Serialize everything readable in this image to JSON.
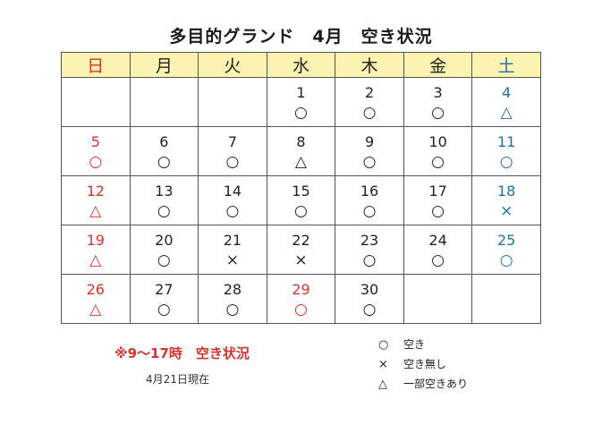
{
  "title": "多目的グランド　4月　空き状況",
  "colors": {
    "sunday": "#d9312b",
    "saturday": "#1f6fa8",
    "header_bg": "#fdf3b0",
    "weekday": "#222222",
    "footnote": "#d9312b"
  },
  "weekdays": [
    "日",
    "月",
    "火",
    "水",
    "木",
    "金",
    "土"
  ],
  "weeks": [
    [
      {
        "day": "",
        "mark": ""
      },
      {
        "day": "",
        "mark": ""
      },
      {
        "day": "",
        "mark": ""
      },
      {
        "day": "1",
        "mark": "○"
      },
      {
        "day": "2",
        "mark": "○"
      },
      {
        "day": "3",
        "mark": "○"
      },
      {
        "day": "4",
        "mark": "△"
      }
    ],
    [
      {
        "day": "5",
        "mark": "○"
      },
      {
        "day": "6",
        "mark": "○"
      },
      {
        "day": "7",
        "mark": "○"
      },
      {
        "day": "8",
        "mark": "△"
      },
      {
        "day": "9",
        "mark": "○"
      },
      {
        "day": "10",
        "mark": "○"
      },
      {
        "day": "11",
        "mark": "○"
      }
    ],
    [
      {
        "day": "12",
        "mark": "△"
      },
      {
        "day": "13",
        "mark": "○"
      },
      {
        "day": "14",
        "mark": "○"
      },
      {
        "day": "15",
        "mark": "○"
      },
      {
        "day": "16",
        "mark": "○"
      },
      {
        "day": "17",
        "mark": "○"
      },
      {
        "day": "18",
        "mark": "×"
      }
    ],
    [
      {
        "day": "19",
        "mark": "△"
      },
      {
        "day": "20",
        "mark": "○"
      },
      {
        "day": "21",
        "mark": "×"
      },
      {
        "day": "22",
        "mark": "×"
      },
      {
        "day": "23",
        "mark": "○"
      },
      {
        "day": "24",
        "mark": "○"
      },
      {
        "day": "25",
        "mark": "○"
      }
    ],
    [
      {
        "day": "26",
        "mark": "△"
      },
      {
        "day": "27",
        "mark": "○"
      },
      {
        "day": "28",
        "mark": "○"
      },
      {
        "day": "29",
        "mark": "○",
        "holiday": true
      },
      {
        "day": "30",
        "mark": "○"
      },
      {
        "day": "",
        "mark": ""
      },
      {
        "day": "",
        "mark": ""
      }
    ]
  ],
  "footnote": "※9～17時　空き状況",
  "as_of": "4月21日現在",
  "legend": [
    {
      "symbol": "○",
      "label": "空き"
    },
    {
      "symbol": "×",
      "label": "空き無し"
    },
    {
      "symbol": "△",
      "label": "一部空きあり"
    }
  ]
}
